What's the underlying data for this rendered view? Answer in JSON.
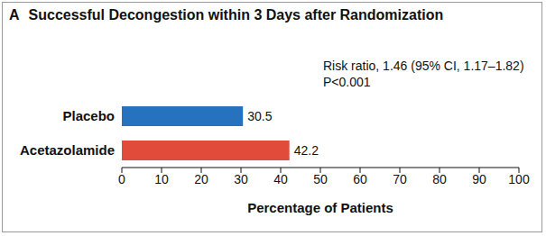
{
  "chart_data": {
    "type": "bar",
    "title": "A Successful Decongestion within 3 Days after Randomization",
    "annotations": [
      "Risk ratio, 1.46 (95% CI, 1.17–1.82)",
      "P<0.001"
    ],
    "categories": [
      "Placebo",
      "Acetazolamide"
    ],
    "values": [
      30.5,
      42.2
    ],
    "colors": [
      "#2672bf",
      "#e04b3a"
    ],
    "orientation": "horizontal",
    "xlabel": "Percentage of Patients",
    "xlim": [
      0,
      100
    ],
    "xticks": [
      0,
      10,
      20,
      30,
      40,
      50,
      60,
      70,
      80,
      90,
      100
    ],
    "grid": false,
    "data_labels": true
  }
}
